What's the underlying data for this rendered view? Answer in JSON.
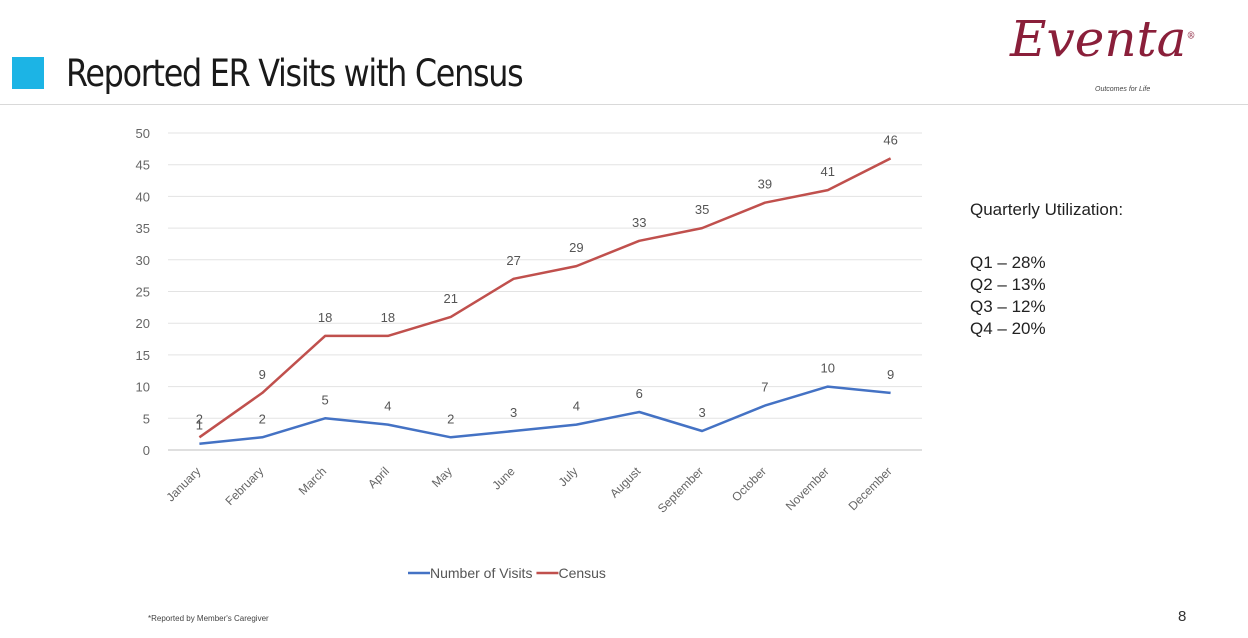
{
  "header": {
    "title": "Reported ER Visits with Census",
    "accent_color": "#1cb4e5"
  },
  "logo": {
    "wordmark": "Eventa",
    "tagline": "Outcomes for Life",
    "registered_mark": "®",
    "color": "#8a1f3a"
  },
  "chart_data": {
    "type": "line",
    "categories": [
      "January",
      "February",
      "March",
      "April",
      "May",
      "June",
      "July",
      "August",
      "September",
      "October",
      "November",
      "December"
    ],
    "series": [
      {
        "name": "Number of Visits",
        "values": [
          1,
          2,
          5,
          4,
          2,
          3,
          4,
          6,
          3,
          7,
          10,
          9
        ],
        "color": "#4472c4"
      },
      {
        "name": "Census",
        "values": [
          2,
          9,
          18,
          18,
          21,
          27,
          29,
          33,
          35,
          39,
          41,
          46
        ],
        "color": "#c0504d"
      }
    ],
    "ylim": [
      0,
      50
    ],
    "yticks": [
      0,
      5,
      10,
      15,
      20,
      25,
      30,
      35,
      40,
      45,
      50
    ],
    "grid": true,
    "legend": "bottom",
    "data_labels": true
  },
  "sidebar": {
    "heading": "Quarterly Utilization:",
    "items": [
      "Q1 – 28%",
      "Q2 – 13%",
      "Q3 – 12%",
      "Q4 – 20%"
    ]
  },
  "footer": {
    "note": "*Reported by Member's Caregiver",
    "page": "8"
  }
}
